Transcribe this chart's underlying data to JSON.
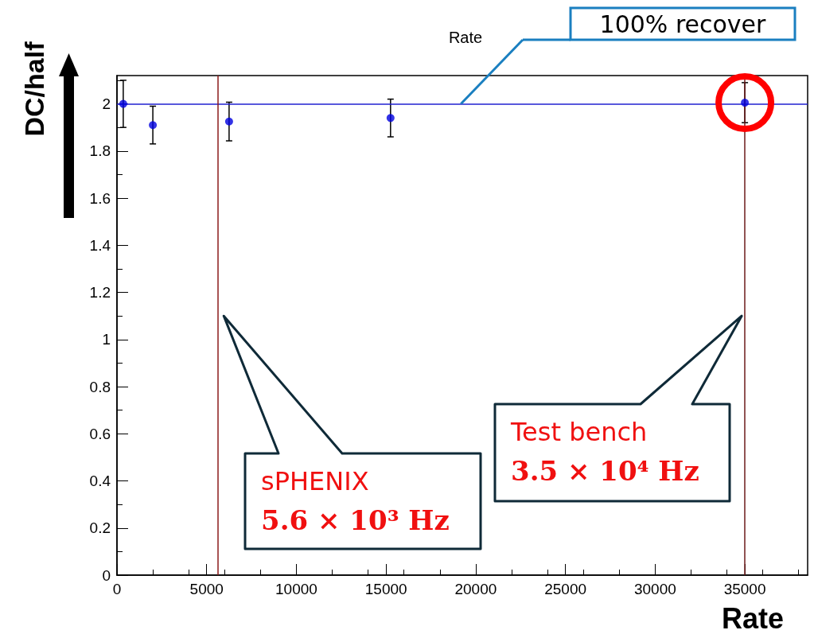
{
  "chart_data": {
    "type": "scatter",
    "title": "Rate",
    "xlabel": "Rate",
    "ylabel": "DC/half",
    "x": [
      350,
      2000,
      6250,
      15250,
      35000
    ],
    "values": [
      2.0,
      1.91,
      1.925,
      1.94,
      2.005
    ],
    "errors": [
      0.1,
      0.08,
      0.082,
      0.08,
      0.085
    ],
    "color": "#0000e0",
    "marker": "circle",
    "xlim": [
      0,
      38500
    ],
    "xticks": [
      0,
      5000,
      10000,
      15000,
      20000,
      25000,
      30000,
      35000
    ],
    "ylim": [
      0,
      2.12
    ],
    "yticks": [
      0,
      0.2,
      0.4,
      0.6,
      0.8,
      1,
      1.2,
      1.4,
      1.6,
      1.8,
      2
    ],
    "grid": false,
    "ref_lines": [
      {
        "axis": "y",
        "value": 2,
        "label": "100% recover",
        "color": "#2020d0"
      },
      {
        "axis": "x",
        "value": 5600,
        "label": "sPHENIX\n5.6 × 10³ Hz",
        "color": "#8b1a1a"
      },
      {
        "axis": "x",
        "value": 35000,
        "label": "Test bench\n3.5 × 10⁴ Hz",
        "color": "#6b1a1a"
      }
    ]
  }
}
